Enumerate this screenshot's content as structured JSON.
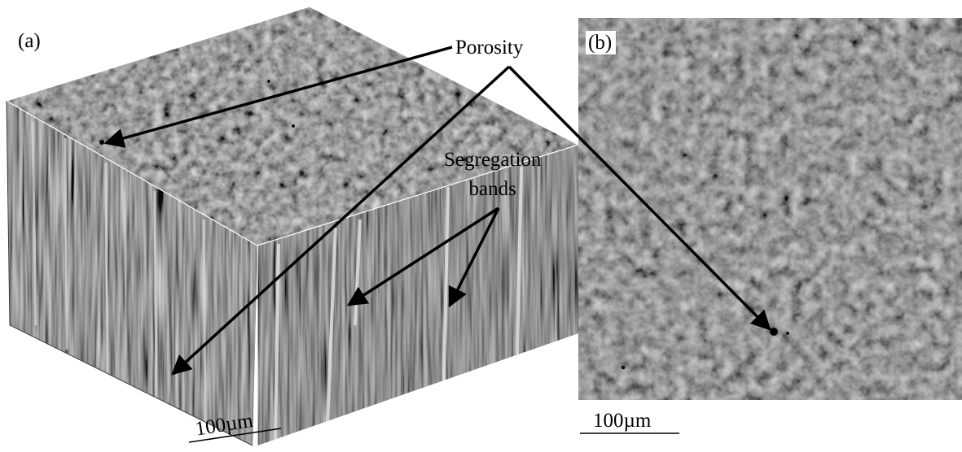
{
  "panels": {
    "a": {
      "label": "(a)"
    },
    "b": {
      "label": "(b)"
    }
  },
  "annotations": {
    "porosity": "Porosity",
    "segregation_line1": "Segregation",
    "segregation_line2": "bands"
  },
  "scale_bars": {
    "a": "100µm",
    "b": "100µm"
  },
  "colors": {
    "matrix": "#6b6b6b",
    "dark_matrix": "#3c3c3c",
    "phase_bright": "#e8e8e8",
    "pore": "#000000",
    "arrow": "#000000"
  }
}
